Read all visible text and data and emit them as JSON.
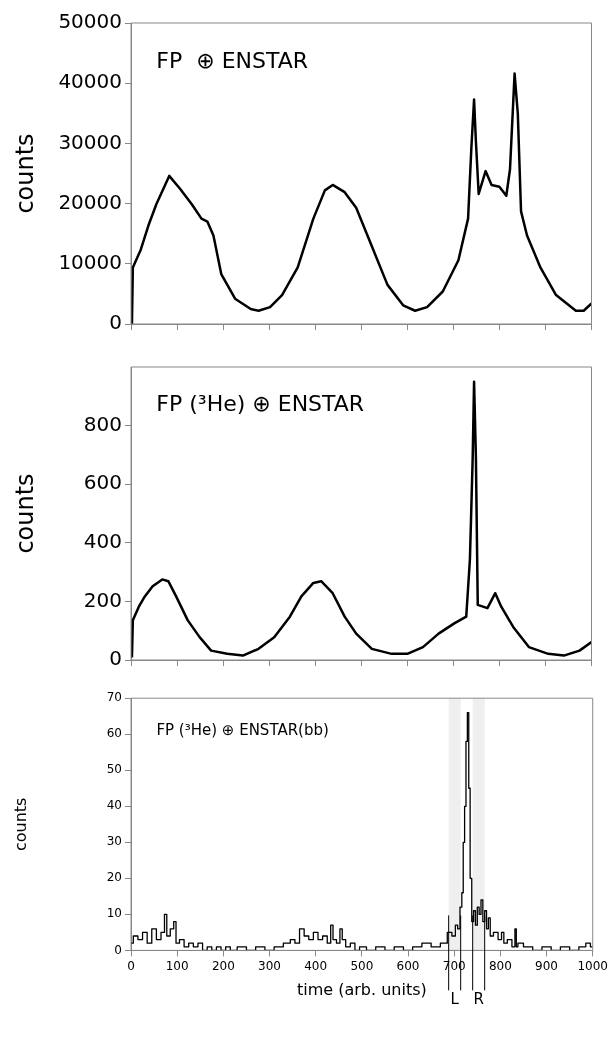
{
  "chart_data": [
    {
      "type": "line",
      "title": "FP  ⊕ ENSTAR",
      "ylabel": "counts",
      "xlim": [
        0,
        1000
      ],
      "xticks": [
        {
          "value": 0,
          "label": null
        },
        {
          "value": 100,
          "label": null
        },
        {
          "value": 200,
          "label": null
        },
        {
          "value": 300,
          "label": null
        },
        {
          "value": 400,
          "label": null
        },
        {
          "value": 500,
          "label": null
        },
        {
          "value": 600,
          "label": null
        },
        {
          "value": 700,
          "label": null
        },
        {
          "value": 800,
          "label": null
        },
        {
          "value": 900,
          "label": null
        },
        {
          "value": 1000,
          "label": null
        }
      ],
      "ylim": [
        0,
        50000
      ],
      "yticks": [
        0,
        10000,
        20000,
        30000,
        40000,
        50000
      ],
      "tick_labels": "y",
      "grid": false,
      "marker": "none",
      "color": "#000000",
      "x": [
        2,
        4,
        21,
        38,
        55,
        83,
        106,
        132,
        153,
        166,
        179,
        196,
        226,
        260,
        277,
        302,
        328,
        362,
        396,
        421,
        438,
        464,
        489,
        523,
        557,
        591,
        617,
        643,
        677,
        711,
        732,
        739,
        745,
        749,
        755,
        770,
        783,
        800,
        815,
        823,
        833,
        840,
        847,
        860,
        889,
        923,
        966,
        983,
        1000
      ],
      "values": [
        0,
        9400,
        12300,
        16400,
        19900,
        24600,
        22500,
        19900,
        17500,
        17000,
        14700,
        8300,
        4200,
        2500,
        2200,
        2800,
        4800,
        9400,
        17500,
        22200,
        23100,
        21900,
        19300,
        12900,
        6500,
        3100,
        2200,
        2800,
        5400,
        10600,
        17500,
        29100,
        37300,
        30300,
        21600,
        25400,
        23100,
        22800,
        21300,
        25700,
        41600,
        34900,
        18700,
        14700,
        9400,
        4800,
        2200,
        2200,
        3400
      ]
    },
    {
      "type": "line",
      "title": "FP (³He) ⊕ ENSTAR",
      "ylabel": "counts",
      "xlim": [
        0,
        1000
      ],
      "xticks": [
        {
          "value": 0,
          "label": null
        },
        {
          "value": 100,
          "label": null
        },
        {
          "value": 200,
          "label": null
        },
        {
          "value": 300,
          "label": null
        },
        {
          "value": 400,
          "label": null
        },
        {
          "value": 500,
          "label": null
        },
        {
          "value": 600,
          "label": null
        },
        {
          "value": 700,
          "label": null
        },
        {
          "value": 800,
          "label": null
        },
        {
          "value": 900,
          "label": null
        },
        {
          "value": 1000,
          "label": null
        }
      ],
      "ylim": [
        0,
        1000
      ],
      "yticks": [
        0,
        200,
        400,
        600,
        800
      ],
      "tick_labels": "y",
      "grid": false,
      "marker": "none",
      "color": "#000000",
      "x": [
        2,
        4,
        17,
        30,
        47,
        68,
        81,
        98,
        123,
        149,
        174,
        209,
        243,
        277,
        311,
        345,
        370,
        396,
        413,
        438,
        464,
        489,
        523,
        566,
        600,
        634,
        668,
        702,
        728,
        736,
        742,
        745,
        749,
        753,
        774,
        791,
        804,
        830,
        864,
        906,
        940,
        974,
        1000
      ],
      "values": [
        9,
        136,
        182,
        217,
        252,
        275,
        269,
        217,
        136,
        78,
        32,
        21,
        15,
        38,
        78,
        148,
        217,
        263,
        269,
        228,
        148,
        90,
        38,
        21,
        21,
        44,
        90,
        125,
        148,
        344,
        690,
        950,
        690,
        188,
        177,
        228,
        182,
        113,
        44,
        21,
        15,
        32,
        61
      ]
    },
    {
      "type": "step",
      "title": "FP (³He) ⊕ ENSTAR(bb)",
      "xlabel": "time (arb. units)",
      "ylabel": "counts",
      "xlim": [
        0,
        1000
      ],
      "xticks": [
        0,
        100,
        200,
        300,
        400,
        500,
        600,
        700,
        800,
        900,
        1000
      ],
      "ylim": [
        0,
        70
      ],
      "yticks": [
        0,
        10,
        20,
        30,
        40,
        50,
        60,
        70
      ],
      "grid": false,
      "marker": "none",
      "color": "#000000",
      "bands": [
        {
          "axis": "x",
          "from": 688,
          "to": 714,
          "label": "L"
        },
        {
          "axis": "x",
          "from": 740,
          "to": 766,
          "label": "R"
        }
      ],
      "x": [
        0,
        10,
        20,
        30,
        40,
        50,
        60,
        70,
        75,
        80,
        90,
        95,
        100,
        110,
        120,
        130,
        140,
        150,
        160,
        170,
        180,
        190,
        200,
        210,
        220,
        240,
        260,
        280,
        300,
        320,
        340,
        350,
        360,
        370,
        380,
        390,
        400,
        410,
        420,
        430,
        435,
        440,
        450,
        455,
        460,
        470,
        480,
        490,
        500,
        520,
        540,
        560,
        580,
        600,
        620,
        640,
        660,
        680,
        690,
        700,
        705,
        710,
        715,
        718,
        721,
        724,
        727,
        730,
        733,
        736,
        740,
        744,
        748,
        752,
        756,
        760,
        764,
        768,
        772,
        776,
        780,
        790,
        800,
        805,
        810,
        820,
        830,
        833,
        836,
        840,
        860,
        880,
        900,
        920,
        940,
        960,
        980,
        990,
        1000
      ],
      "values": [
        2,
        4,
        3,
        5,
        2,
        6,
        3,
        5,
        10,
        4,
        6,
        8,
        2,
        3,
        1,
        2,
        1,
        2,
        0,
        1,
        0,
        1,
        0,
        1,
        0,
        1,
        0,
        1,
        0,
        1,
        2,
        3,
        2,
        6,
        4,
        3,
        5,
        3,
        4,
        2,
        7,
        3,
        2,
        6,
        3,
        1,
        2,
        0,
        1,
        0,
        1,
        0,
        1,
        0,
        1,
        2,
        1,
        2,
        5,
        4,
        7,
        6,
        12,
        16,
        30,
        40,
        58,
        66,
        45,
        20,
        8,
        11,
        7,
        12,
        10,
        14,
        8,
        11,
        6,
        9,
        4,
        5,
        3,
        5,
        2,
        3,
        1,
        6,
        1,
        2,
        1,
        0,
        1,
        0,
        1,
        0,
        1,
        2,
        1
      ]
    }
  ]
}
